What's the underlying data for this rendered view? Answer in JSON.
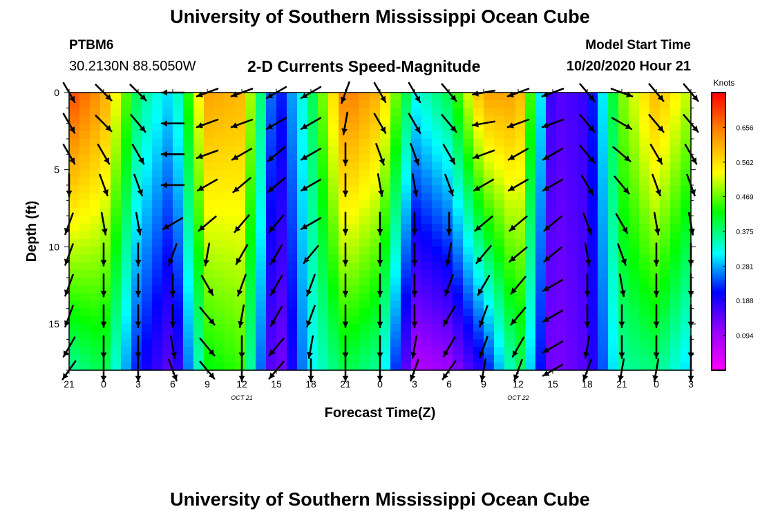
{
  "header": {
    "title": "University of Southern Mississippi Ocean Cube",
    "station_id": "PTBM6",
    "coordinates": "30.2130N 88.5050W",
    "subtitle": "2-D Currents Speed-Magnitude",
    "model_start_label": "Model Start Time",
    "model_start_value": "10/20/2020 Hour 21"
  },
  "footer": {
    "title": "University of Southern Mississippi Ocean Cube"
  },
  "chart_data": {
    "type": "heatmap",
    "title": "2-D Currents Speed-Magnitude",
    "xlabel": "Forecast Time(Z)",
    "ylabel": "Depth (ft)",
    "x_ticks": [
      "21",
      "0",
      "3",
      "6",
      "9",
      "12",
      "15",
      "18",
      "21",
      "0",
      "3",
      "6",
      "9",
      "12",
      "15",
      "18",
      "21",
      "0",
      "3"
    ],
    "x_range_hours": [
      0,
      54
    ],
    "date_labels": [
      {
        "text": "OCT 21",
        "hour": 15
      },
      {
        "text": "OCT 22",
        "hour": 39
      }
    ],
    "y_ticks": [
      0,
      5,
      10,
      15
    ],
    "ylim_ft": [
      0,
      18
    ],
    "y_inverted": true,
    "colorbar": {
      "label": "Knots",
      "min": 0.0,
      "max": 0.75,
      "ticks": [
        "0.656",
        "0.562",
        "0.469",
        "0.375",
        "0.281",
        "0.188",
        "0.094"
      ],
      "colors": [
        "#ff00ff",
        "#9900ff",
        "#0000ff",
        "#00ffff",
        "#00ff00",
        "#ffff00",
        "#ff8800",
        "#ff0000"
      ]
    },
    "time_hours": [
      0,
      3,
      6,
      9,
      12,
      15,
      18,
      21,
      24,
      27,
      30,
      33,
      36,
      39,
      42,
      45,
      48,
      51,
      54
    ],
    "surface_speed": [
      0.7,
      0.62,
      0.38,
      0.3,
      0.62,
      0.6,
      0.2,
      0.38,
      0.66,
      0.6,
      0.33,
      0.4,
      0.62,
      0.62,
      0.15,
      0.18,
      0.48,
      0.6,
      0.5
    ],
    "bottom_speed": [
      0.36,
      0.4,
      0.22,
      0.14,
      0.42,
      0.45,
      0.1,
      0.32,
      0.4,
      0.36,
      0.08,
      0.1,
      0.2,
      0.4,
      0.12,
      0.16,
      0.36,
      0.38,
      0.3
    ],
    "arrow_depths_ft": [
      0,
      2,
      4,
      6,
      8.5,
      10.5,
      12.5,
      14.5,
      16.5,
      18
    ],
    "arrow_directions_deg": [
      [
        150,
        150,
        150,
        180,
        200,
        200,
        200,
        200,
        210,
        215
      ],
      [
        135,
        135,
        150,
        160,
        170,
        180,
        180,
        180,
        180,
        180
      ],
      [
        135,
        140,
        150,
        160,
        170,
        180,
        180,
        180,
        180,
        180
      ],
      [
        270,
        270,
        270,
        270,
        240,
        200,
        180,
        180,
        170,
        160
      ],
      [
        250,
        250,
        250,
        240,
        230,
        190,
        150,
        140,
        140,
        140
      ],
      [
        250,
        250,
        240,
        230,
        220,
        210,
        200,
        190,
        180,
        180
      ],
      [
        240,
        240,
        230,
        230,
        220,
        210,
        210,
        210,
        220,
        220
      ],
      [
        240,
        240,
        240,
        240,
        240,
        220,
        200,
        200,
        190,
        180
      ],
      [
        200,
        190,
        180,
        180,
        180,
        180,
        180,
        180,
        180,
        180
      ],
      [
        150,
        150,
        160,
        170,
        180,
        180,
        180,
        180,
        180,
        180
      ],
      [
        150,
        150,
        160,
        170,
        180,
        180,
        180,
        180,
        190,
        200
      ],
      [
        140,
        140,
        150,
        160,
        180,
        190,
        200,
        210,
        210,
        215
      ],
      [
        260,
        260,
        250,
        240,
        230,
        220,
        210,
        200,
        200,
        190
      ],
      [
        250,
        250,
        240,
        240,
        230,
        230,
        220,
        220,
        210,
        200
      ],
      [
        250,
        250,
        240,
        240,
        230,
        230,
        240,
        240,
        240,
        240
      ],
      [
        140,
        140,
        140,
        150,
        160,
        170,
        180,
        180,
        190,
        200
      ],
      [
        110,
        120,
        130,
        140,
        150,
        160,
        170,
        180,
        180,
        190
      ],
      [
        140,
        140,
        150,
        160,
        170,
        180,
        180,
        180,
        180,
        190
      ],
      [
        140,
        140,
        150,
        160,
        170,
        180,
        180,
        180,
        180,
        180
      ]
    ]
  }
}
